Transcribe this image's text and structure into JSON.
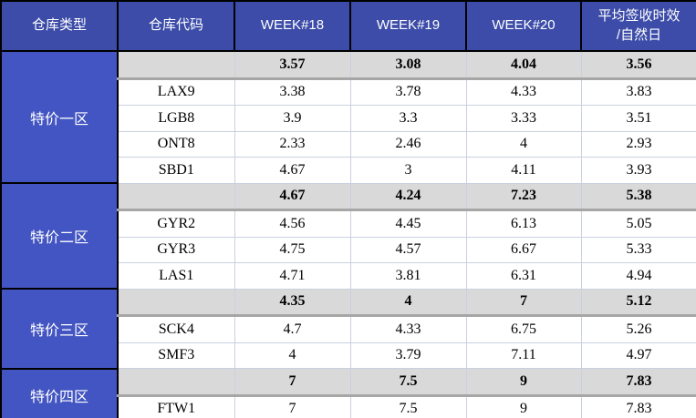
{
  "table": {
    "header": {
      "cells": [
        "仓库类型",
        "仓库代码",
        "WEEK#18",
        "WEEK#19",
        "WEEK#20"
      ],
      "last_cell_line1": "平均签收时效",
      "last_cell_line2": "/自然日"
    },
    "groups": [
      {
        "zone": "特价一区",
        "summary": [
          "3.57",
          "3.08",
          "4.04",
          "3.56"
        ],
        "rows": [
          {
            "code": "LAX9",
            "values": [
              "3.38",
              "3.78",
              "4.33",
              "3.83"
            ]
          },
          {
            "code": "LGB8",
            "values": [
              "3.9",
              "3.3",
              "3.33",
              "3.51"
            ]
          },
          {
            "code": "ONT8",
            "values": [
              "2.33",
              "2.46",
              "4",
              "2.93"
            ]
          },
          {
            "code": "SBD1",
            "values": [
              "4.67",
              "3",
              "4.11",
              "3.93"
            ]
          }
        ]
      },
      {
        "zone": "特价二区",
        "summary": [
          "4.67",
          "4.24",
          "7.23",
          "5.38"
        ],
        "rows": [
          {
            "code": "GYR2",
            "values": [
              "4.56",
              "4.45",
              "6.13",
              "5.05"
            ]
          },
          {
            "code": "GYR3",
            "values": [
              "4.75",
              "4.57",
              "6.67",
              "5.33"
            ]
          },
          {
            "code": "LAS1",
            "values": [
              "4.71",
              "3.81",
              "6.31",
              "4.94"
            ]
          }
        ]
      },
      {
        "zone": "特价三区",
        "summary": [
          "4.35",
          "4",
          "7",
          "5.12"
        ],
        "rows": [
          {
            "code": "SCK4",
            "values": [
              "4.7",
              "4.33",
              "6.75",
              "5.26"
            ]
          },
          {
            "code": "SMF3",
            "values": [
              "4",
              "3.79",
              "7.11",
              "4.97"
            ]
          }
        ]
      },
      {
        "zone": "特价四区",
        "summary": [
          "7",
          "7.5",
          "9",
          "7.83"
        ],
        "rows": [
          {
            "code": "FTW1",
            "values": [
              "7",
              "7.5",
              "9",
              "7.83"
            ]
          }
        ]
      }
    ],
    "colors": {
      "header_bg": "#3C4CA8",
      "zone_bg": "#4355C2",
      "summary_bg": "#D9D9D9",
      "summary_border": "#A6A6A6",
      "grid_line": "#C9D1DF",
      "hard_border": "#000000",
      "header_text": "#ffffff",
      "data_text": "#000000"
    }
  },
  "chart_data": {
    "type": "table",
    "title": "",
    "columns": [
      "仓库类型",
      "仓库代码",
      "WEEK#18",
      "WEEK#19",
      "WEEK#20",
      "平均签收时效/自然日"
    ],
    "rows": [
      [
        "特价一区",
        "",
        3.57,
        3.08,
        4.04,
        3.56
      ],
      [
        "特价一区",
        "LAX9",
        3.38,
        3.78,
        4.33,
        3.83
      ],
      [
        "特价一区",
        "LGB8",
        3.9,
        3.3,
        3.33,
        3.51
      ],
      [
        "特价一区",
        "ONT8",
        2.33,
        2.46,
        4,
        2.93
      ],
      [
        "特价一区",
        "SBD1",
        4.67,
        3,
        4.11,
        3.93
      ],
      [
        "特价二区",
        "",
        4.67,
        4.24,
        7.23,
        5.38
      ],
      [
        "特价二区",
        "GYR2",
        4.56,
        4.45,
        6.13,
        5.05
      ],
      [
        "特价二区",
        "GYR3",
        4.75,
        4.57,
        6.67,
        5.33
      ],
      [
        "特价二区",
        "LAS1",
        4.71,
        3.81,
        6.31,
        4.94
      ],
      [
        "特价三区",
        "",
        4.35,
        4,
        7,
        5.12
      ],
      [
        "特价三区",
        "SCK4",
        4.7,
        4.33,
        6.75,
        5.26
      ],
      [
        "特价三区",
        "SMF3",
        4,
        3.79,
        7.11,
        4.97
      ],
      [
        "特价四区",
        "",
        7,
        7.5,
        9,
        7.83
      ],
      [
        "特价四区",
        "FTW1",
        7,
        7.5,
        9,
        7.83
      ]
    ],
    "notes": "Rows with empty 仓库代码 are bold zone-summary rows on gray background"
  }
}
